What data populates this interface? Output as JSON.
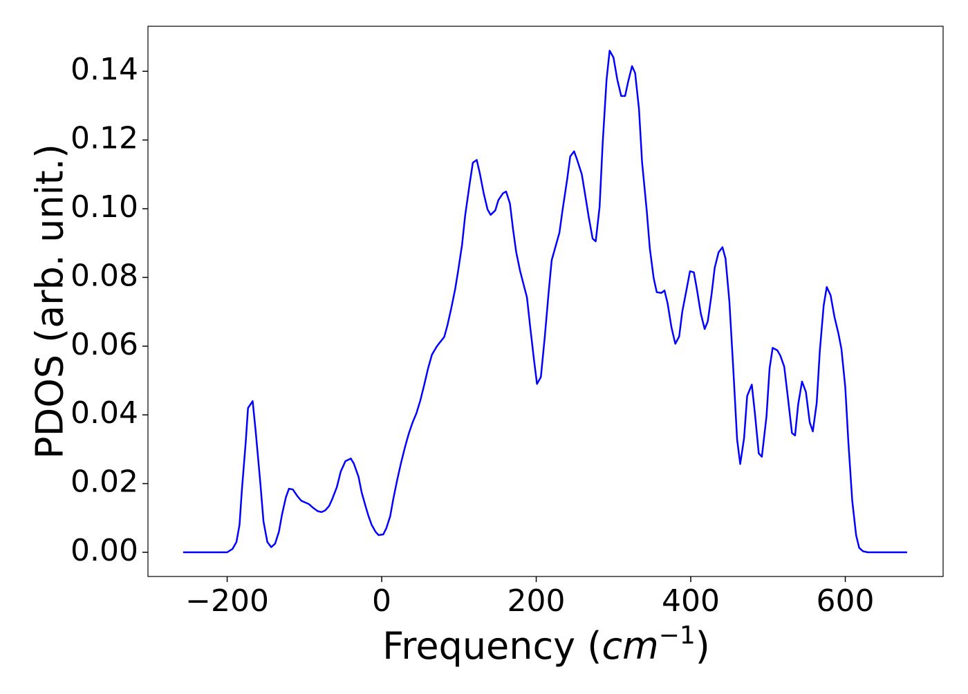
{
  "chart_data": {
    "type": "line",
    "xlabel": {
      "text": "Frequency (",
      "unit": "cm",
      "exponent": "−1",
      "close": ")"
    },
    "ylabel": "PDOS (arb. unit.)",
    "series": [
      {
        "color": "#0000ff",
        "x": [
          -257,
          -200,
          -193,
          -188,
          -184,
          -181,
          -176,
          -173,
          -167,
          -163,
          -157,
          -153,
          -148,
          -143,
          -138,
          -133,
          -129,
          -124,
          -120,
          -115,
          -109,
          -104,
          -94,
          -89,
          -83,
          -78,
          -73,
          -68,
          -64,
          -58,
          -53,
          -47,
          -40,
          -36,
          -30,
          -26,
          -21,
          -17,
          -13,
          -8,
          -4,
          2,
          6,
          11,
          15,
          20,
          25,
          30,
          35,
          40,
          45,
          50,
          55,
          60,
          65,
          71,
          75,
          81,
          85,
          90,
          95,
          99,
          104,
          108,
          114,
          118,
          123,
          127,
          132,
          137,
          141,
          147,
          151,
          157,
          161,
          166,
          170,
          174,
          179,
          183,
          188,
          192,
          197,
          201,
          206,
          211,
          216,
          220,
          226,
          230,
          234,
          240,
          244,
          249,
          253,
          259,
          263,
          268,
          273,
          277,
          282,
          286,
          291,
          295,
          300,
          305,
          310,
          315,
          319,
          324,
          328,
          333,
          337,
          343,
          347,
          352,
          356,
          362,
          366,
          370,
          375,
          380,
          385,
          389,
          395,
          399,
          404,
          408,
          413,
          418,
          422,
          427,
          431,
          436,
          441,
          445,
          450,
          455,
          460,
          464,
          469,
          473,
          479,
          483,
          488,
          492,
          498,
          502,
          506,
          512,
          516,
          521,
          526,
          531,
          535,
          539,
          544,
          549,
          554,
          558,
          563,
          567,
          572,
          576,
          581,
          586,
          591,
          595,
          600,
          604,
          609,
          614,
          618,
          623,
          629,
          680
        ],
        "values": [
          0,
          0,
          0.001,
          0.003,
          0.008,
          0.018,
          0.032,
          0.042,
          0.044,
          0.035,
          0.02,
          0.009,
          0.003,
          0.0015,
          0.0025,
          0.006,
          0.011,
          0.016,
          0.0185,
          0.0183,
          0.0163,
          0.015,
          0.014,
          0.013,
          0.012,
          0.0117,
          0.0122,
          0.0135,
          0.0155,
          0.019,
          0.0235,
          0.0265,
          0.0273,
          0.0258,
          0.022,
          0.0175,
          0.0135,
          0.0105,
          0.008,
          0.006,
          0.005,
          0.0052,
          0.007,
          0.0105,
          0.0155,
          0.021,
          0.026,
          0.0305,
          0.0345,
          0.0378,
          0.0405,
          0.0442,
          0.0487,
          0.0535,
          0.0575,
          0.0598,
          0.061,
          0.0627,
          0.066,
          0.071,
          0.0765,
          0.082,
          0.0895,
          0.098,
          0.1075,
          0.1134,
          0.1142,
          0.1103,
          0.1045,
          0.0998,
          0.0982,
          0.0995,
          0.1025,
          0.1045,
          0.105,
          0.1015,
          0.094,
          0.0875,
          0.082,
          0.0785,
          0.0742,
          0.066,
          0.0562,
          0.049,
          0.051,
          0.0625,
          0.0755,
          0.085,
          0.0898,
          0.093,
          0.0995,
          0.1085,
          0.1152,
          0.1167,
          0.1142,
          0.11,
          0.1045,
          0.0975,
          0.0913,
          0.0905,
          0.1005,
          0.119,
          0.1375,
          0.146,
          0.144,
          0.1375,
          0.1328,
          0.1328,
          0.137,
          0.1415,
          0.1395,
          0.129,
          0.1135,
          0.0995,
          0.0885,
          0.0798,
          0.0757,
          0.0755,
          0.0762,
          0.0725,
          0.0655,
          0.0607,
          0.0628,
          0.07,
          0.077,
          0.0818,
          0.0815,
          0.0765,
          0.0695,
          0.065,
          0.0672,
          0.0752,
          0.0828,
          0.0873,
          0.0888,
          0.0855,
          0.073,
          0.0535,
          0.0328,
          0.0257,
          0.0332,
          0.0455,
          0.0488,
          0.0405,
          0.0288,
          0.0278,
          0.0395,
          0.0535,
          0.0595,
          0.0588,
          0.0572,
          0.054,
          0.0445,
          0.0347,
          0.034,
          0.043,
          0.0497,
          0.0467,
          0.0378,
          0.0352,
          0.0435,
          0.0585,
          0.0718,
          0.0772,
          0.0748,
          0.0685,
          0.0638,
          0.0592,
          0.048,
          0.032,
          0.015,
          0.005,
          0.0013,
          0.0003,
          0,
          0
        ]
      }
    ],
    "xlim": [
      -302.5,
      726.6
    ],
    "ylim": [
      -0.00704,
      0.1531
    ],
    "xticks": [
      {
        "value": -200,
        "label": "−200"
      },
      0,
      200,
      400,
      600
    ],
    "yticks": [
      {
        "value": 0,
        "label": "0.00"
      },
      {
        "value": 0.02,
        "label": "0.02"
      },
      {
        "value": 0.04,
        "label": "0.04"
      },
      {
        "value": 0.06,
        "label": "0.06"
      },
      {
        "value": 0.08,
        "label": "0.08"
      },
      {
        "value": 0.1,
        "label": "0.10"
      },
      {
        "value": 0.12,
        "label": "0.12"
      },
      {
        "value": 0.14,
        "label": "0.14"
      }
    ],
    "grid": false
  }
}
